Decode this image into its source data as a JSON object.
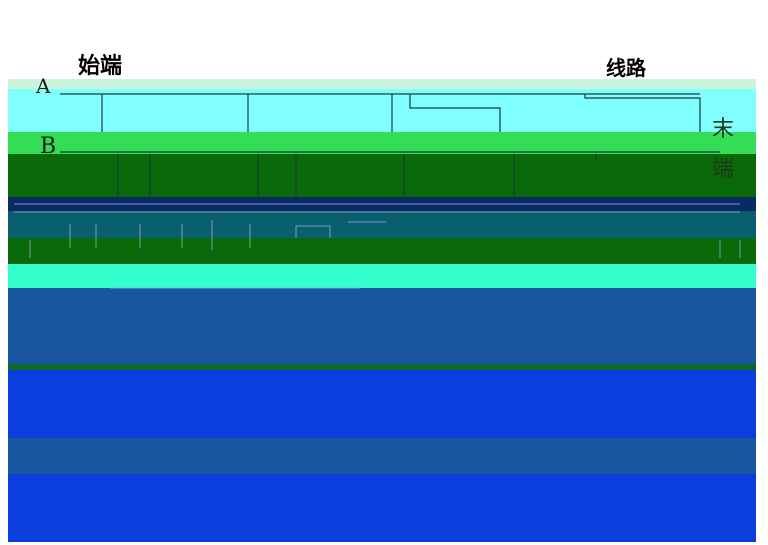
{
  "labels": {
    "start": "始端",
    "line": "线路",
    "conductor_a": "A",
    "conductor_b": "B",
    "end_char_1": "末",
    "end_char_2": "端"
  },
  "colors": {
    "mint": "#c8f5dc",
    "cyan": "#80ffff",
    "green": "#33dd55",
    "dark_green": "#0a6a0a",
    "teal": "#0a5f6f",
    "navy": "#0a2a66",
    "blue": "#1a56a0",
    "bright_blue": "#0a3fdd",
    "aqua": "#33ffcc"
  }
}
